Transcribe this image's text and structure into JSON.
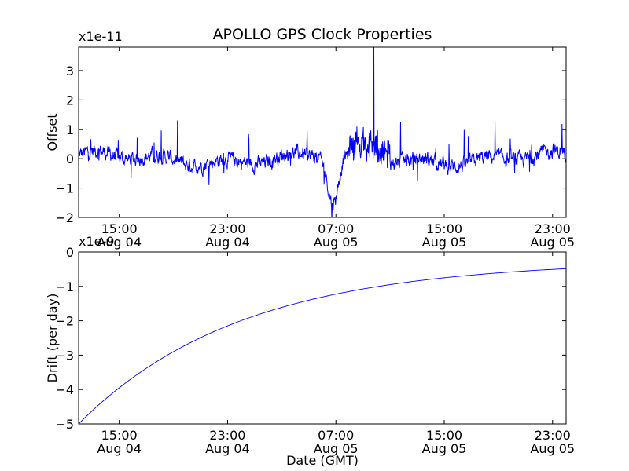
{
  "chart_data": {
    "title": "APOLLO GPS Clock Properties",
    "xlabel": "Date (GMT)",
    "x_tick_labels": [
      {
        "time": "15:00",
        "date": "Aug 04"
      },
      {
        "time": "23:00",
        "date": "Aug 04"
      },
      {
        "time": "07:00",
        "date": "Aug 05"
      },
      {
        "time": "15:00",
        "date": "Aug 05"
      },
      {
        "time": "23:00",
        "date": "Aug 05"
      }
    ],
    "x_tick_hours": [
      3,
      11,
      19,
      27,
      35
    ],
    "xlim_hours": [
      0,
      36
    ],
    "panels": [
      {
        "type": "line",
        "ylabel": "Offset",
        "multiplier": "x1e-11",
        "ylim": [
          -2,
          3.8
        ],
        "y_ticks": [
          -2,
          -1,
          0,
          1,
          2,
          3
        ],
        "color": "#0000ff",
        "series_description_points_hours": [
          [
            0,
            0
          ],
          [
            8.5,
            -0.1
          ],
          [
            12.2,
            -0.3
          ],
          [
            18.6,
            -1.0
          ],
          [
            19.0,
            -1.8
          ],
          [
            19.3,
            -1.4
          ],
          [
            20.0,
            -0.5
          ],
          [
            21.5,
            0.2
          ],
          [
            22.5,
            0.4
          ],
          [
            22.0,
            3.8
          ],
          [
            26.0,
            0.1
          ],
          [
            36,
            0.0
          ]
        ],
        "noise_amplitude": 0.3,
        "peak": {
          "hour": 21.8,
          "value": 3.8
        },
        "trough": {
          "hour": 18.7,
          "value": -2.0
        },
        "sample_count": 1440
      },
      {
        "type": "line",
        "ylabel": "Drift (per day)",
        "multiplier": "x1e-9",
        "ylim": [
          -5,
          0
        ],
        "y_ticks": [
          -5,
          -4,
          -3,
          -2,
          -1,
          0
        ],
        "color": "#0000ff",
        "curve": "exponential",
        "start_value": -5.0,
        "end_value": -0.25,
        "decay_hours": 12
      }
    ]
  }
}
